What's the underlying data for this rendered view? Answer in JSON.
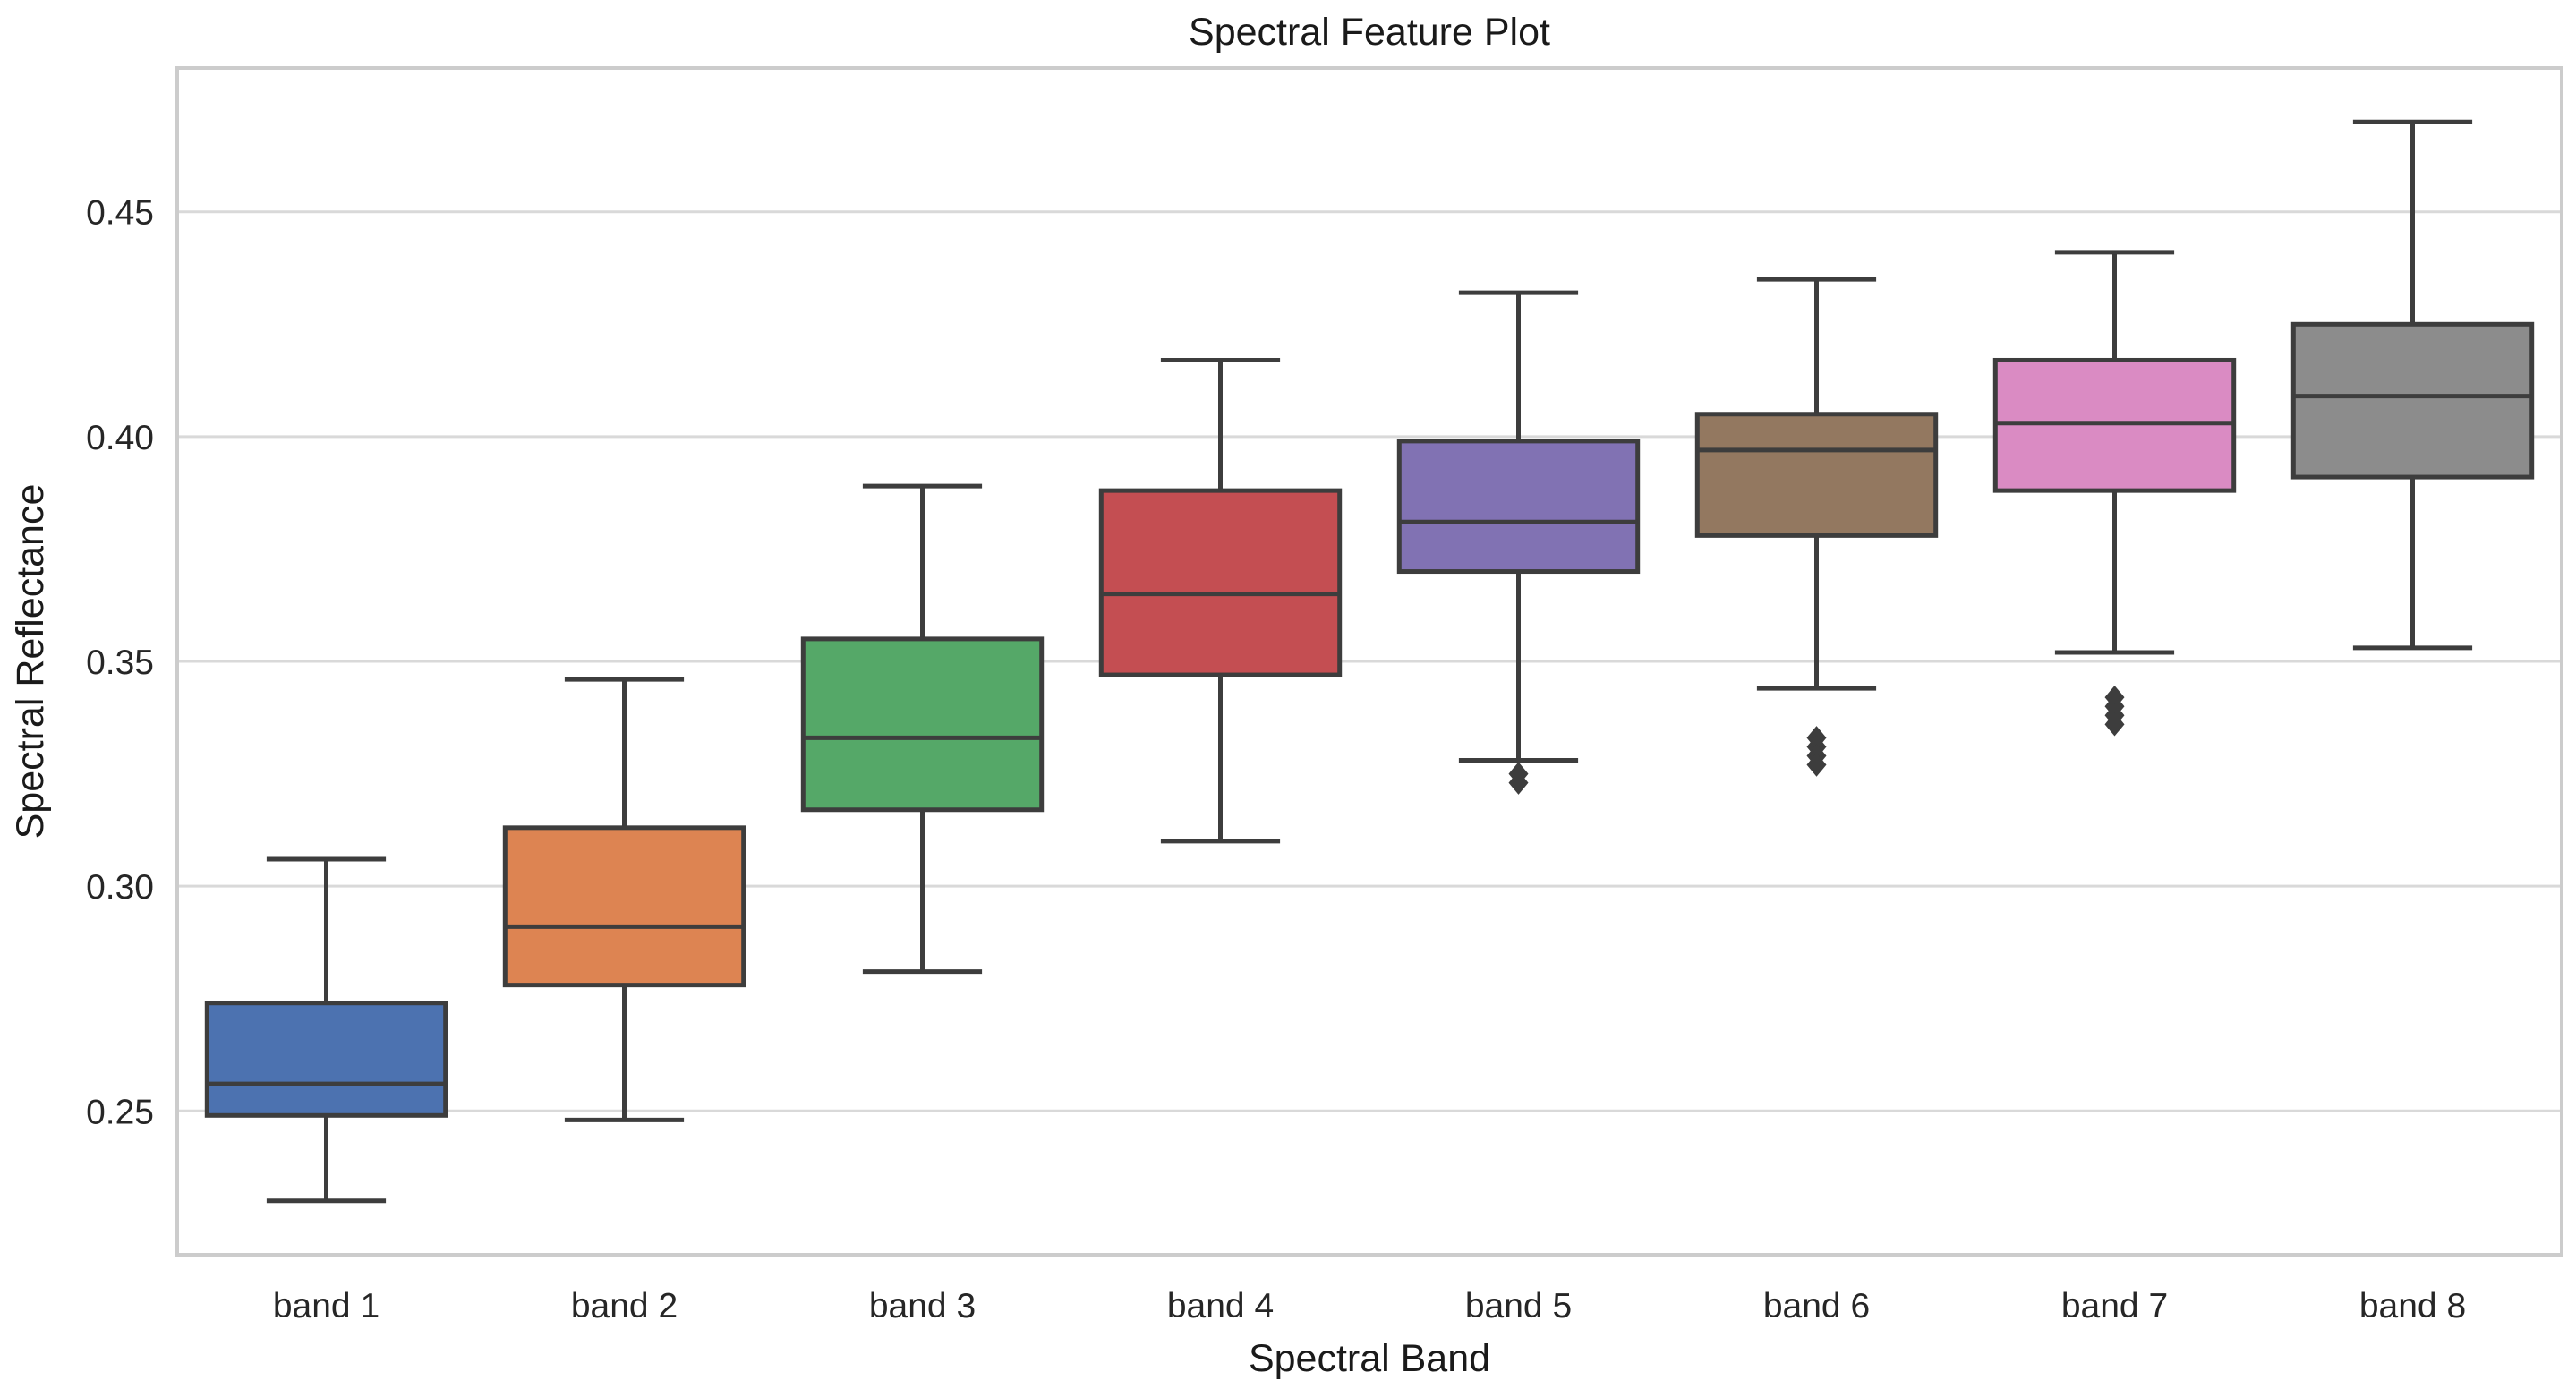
{
  "chart_data": {
    "type": "box",
    "title": "Spectral Feature Plot",
    "xlabel": "Spectral Band",
    "ylabel": "Spectral Reflectance",
    "ylim": [
      0.218,
      0.482
    ],
    "yticks": [
      0.25,
      0.3,
      0.35,
      0.4,
      0.45
    ],
    "ytick_labels": [
      "0.25",
      "0.30",
      "0.35",
      "0.40",
      "0.45"
    ],
    "grid": true,
    "categories": [
      "band 1",
      "band 2",
      "band 3",
      "band 4",
      "band 5",
      "band 6",
      "band 7",
      "band 8"
    ],
    "boxes": [
      {
        "label": "band 1",
        "whisker_low": 0.23,
        "q1": 0.249,
        "median": 0.256,
        "q3": 0.274,
        "whisker_high": 0.306,
        "outliers": [],
        "color": "#4c72b0"
      },
      {
        "label": "band 2",
        "whisker_low": 0.248,
        "q1": 0.278,
        "median": 0.291,
        "q3": 0.313,
        "whisker_high": 0.346,
        "outliers": [],
        "color": "#dd8452"
      },
      {
        "label": "band 3",
        "whisker_low": 0.281,
        "q1": 0.317,
        "median": 0.333,
        "q3": 0.355,
        "whisker_high": 0.389,
        "outliers": [],
        "color": "#55a868"
      },
      {
        "label": "band 4",
        "whisker_low": 0.31,
        "q1": 0.347,
        "median": 0.365,
        "q3": 0.388,
        "whisker_high": 0.417,
        "outliers": [],
        "color": "#c44e52"
      },
      {
        "label": "band 5",
        "whisker_low": 0.328,
        "q1": 0.37,
        "median": 0.381,
        "q3": 0.399,
        "whisker_high": 0.432,
        "outliers": [
          0.325,
          0.323
        ],
        "color": "#8172b3"
      },
      {
        "label": "band 6",
        "whisker_low": 0.344,
        "q1": 0.378,
        "median": 0.397,
        "q3": 0.405,
        "whisker_high": 0.435,
        "outliers": [
          0.333,
          0.331,
          0.329,
          0.327
        ],
        "color": "#937860"
      },
      {
        "label": "band 7",
        "whisker_low": 0.352,
        "q1": 0.388,
        "median": 0.403,
        "q3": 0.417,
        "whisker_high": 0.441,
        "outliers": [
          0.342,
          0.34,
          0.338,
          0.336
        ],
        "color": "#da8bc3"
      },
      {
        "label": "band 8",
        "whisker_low": 0.353,
        "q1": 0.391,
        "median": 0.409,
        "q3": 0.425,
        "whisker_high": 0.47,
        "outliers": [],
        "color": "#8c8c8c"
      }
    ],
    "style": {
      "line_color": "#3d3d3d",
      "grid_color": "#d9d9d9",
      "frame_color": "#cccccc"
    }
  }
}
